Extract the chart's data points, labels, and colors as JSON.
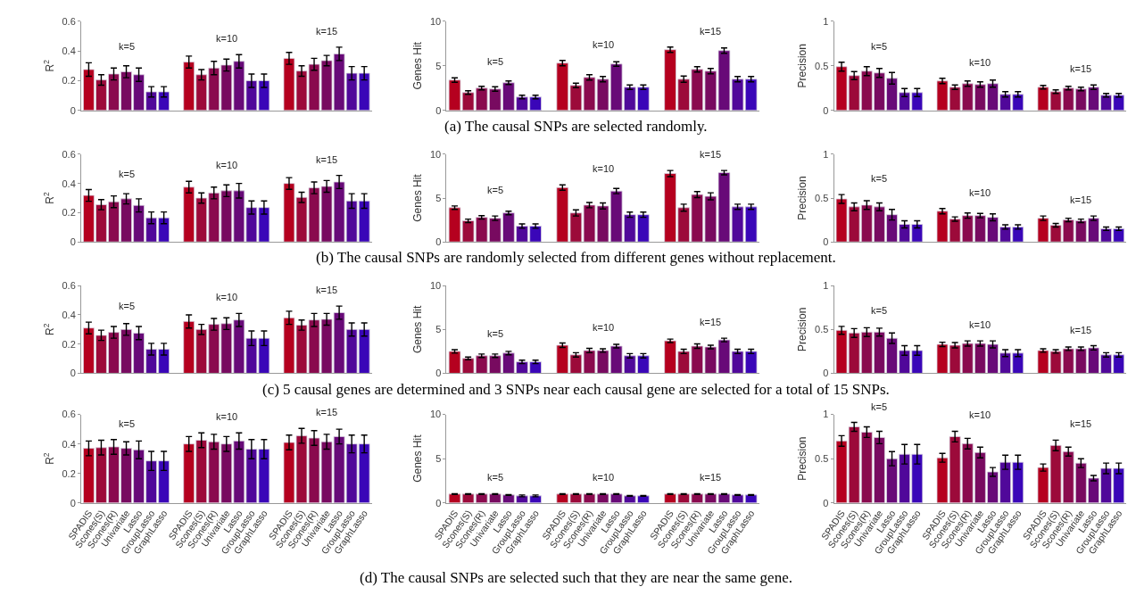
{
  "chart_data": [
    {
      "type": "bar",
      "ylabel": "R$^{2}$",
      "categories": [
        null,
        null,
        null,
        null,
        null,
        null,
        null,
        null,
        null,
        null,
        null,
        null,
        null,
        null,
        null,
        null,
        null,
        null,
        null,
        null,
        null,
        null,
        null
      ],
      "colors": [
        "#b5001f",
        "#9c0a3a",
        "#8a0a4e",
        "#780a60",
        "#680a78",
        "#50089a",
        "#3a06b8",
        null,
        "#b5001f",
        "#9c0a3a",
        "#8a0a4e",
        "#780a60",
        "#680a78",
        "#50089a",
        "#3a06b8",
        null,
        "#b5001f",
        "#9c0a3a",
        "#8a0a4e",
        "#780a60",
        "#680a78",
        "#50089a",
        "#3a06b8"
      ],
      "values": [
        0.275,
        0.205,
        0.245,
        0.26,
        0.24,
        0.125,
        0.125,
        null,
        0.325,
        0.24,
        0.285,
        0.305,
        0.33,
        0.2,
        0.2,
        null,
        0.35,
        0.265,
        0.31,
        0.335,
        0.38,
        0.25,
        0.25
      ],
      "errors": [
        0.045,
        0.035,
        0.04,
        0.04,
        0.045,
        0.035,
        0.035,
        null,
        0.04,
        0.035,
        0.045,
        0.04,
        0.045,
        0.045,
        0.045,
        null,
        0.04,
        0.035,
        0.04,
        0.035,
        0.045,
        0.045,
        0.045
      ],
      "ylim": [
        0,
        0.6
      ],
      "yticks": [
        0,
        0.2,
        0.4,
        0.6
      ],
      "annotations": [
        "k=5",
        "k=10",
        "k=15"
      ]
    },
    {
      "type": "bar",
      "ylabel": "Genes Hit",
      "categories": [
        null,
        null,
        null,
        null,
        null,
        null,
        null,
        null,
        null,
        null,
        null,
        null,
        null,
        null,
        null,
        null,
        null,
        null,
        null,
        null,
        null,
        null,
        null
      ],
      "colors": [
        "#b5001f",
        "#9c0a3a",
        "#8a0a4e",
        "#780a60",
        "#680a78",
        "#50089a",
        "#3a06b8",
        null,
        "#b5001f",
        "#9c0a3a",
        "#8a0a4e",
        "#780a60",
        "#680a78",
        "#50089a",
        "#3a06b8",
        null,
        "#b5001f",
        "#9c0a3a",
        "#8a0a4e",
        "#780a60",
        "#680a78",
        "#50089a",
        "#3a06b8"
      ],
      "values": [
        3.4,
        2.0,
        2.5,
        2.4,
        3.1,
        1.5,
        1.5,
        null,
        5.3,
        2.8,
        3.7,
        3.5,
        5.2,
        2.6,
        2.6,
        null,
        6.8,
        3.5,
        4.6,
        4.4,
        6.7,
        3.5,
        3.5
      ],
      "errors": [
        0.25,
        0.2,
        0.2,
        0.25,
        0.2,
        0.2,
        0.2,
        null,
        0.3,
        0.25,
        0.3,
        0.3,
        0.25,
        0.25,
        0.25,
        null,
        0.3,
        0.35,
        0.3,
        0.3,
        0.3,
        0.3,
        0.3
      ],
      "ylim": [
        0,
        10
      ],
      "yticks": [
        0,
        5,
        10
      ],
      "annotations": [
        "k=5",
        "k=10",
        "k=15",
        "(a) The causal SNPs are selected randomly."
      ]
    },
    {
      "type": "bar",
      "ylabel": "Precision",
      "categories": [
        null,
        null,
        null,
        null,
        null,
        null,
        null,
        null,
        null,
        null,
        null,
        null,
        null,
        null,
        null,
        null,
        null,
        null,
        null,
        null,
        null,
        null,
        null
      ],
      "colors": [
        "#b5001f",
        "#9c0a3a",
        "#8a0a4e",
        "#780a60",
        "#680a78",
        "#50089a",
        "#3a06b8",
        null,
        "#b5001f",
        "#9c0a3a",
        "#8a0a4e",
        "#780a60",
        "#680a78",
        "#50089a",
        "#3a06b8",
        null,
        "#b5001f",
        "#9c0a3a",
        "#8a0a4e",
        "#780a60",
        "#680a78",
        "#50089a",
        "#3a06b8"
      ],
      "values": [
        0.49,
        0.39,
        0.44,
        0.42,
        0.36,
        0.2,
        0.2,
        null,
        0.33,
        0.26,
        0.3,
        0.29,
        0.3,
        0.18,
        0.18,
        null,
        0.26,
        0.21,
        0.25,
        0.24,
        0.26,
        0.17,
        0.17
      ],
      "errors": [
        0.05,
        0.045,
        0.05,
        0.05,
        0.065,
        0.045,
        0.045,
        null,
        0.03,
        0.025,
        0.03,
        0.03,
        0.04,
        0.03,
        0.03,
        null,
        0.02,
        0.02,
        0.02,
        0.02,
        0.025,
        0.02,
        0.02
      ],
      "ylim": [
        0,
        1
      ],
      "yticks": [
        0,
        0.5,
        1
      ],
      "annotations": [
        "k=5",
        "k=10",
        "k=15"
      ]
    },
    {
      "type": "bar",
      "ylabel": "R$^{2}$",
      "categories": [
        null,
        null,
        null,
        null,
        null,
        null,
        null,
        null,
        null,
        null,
        null,
        null,
        null,
        null,
        null,
        null,
        null,
        null,
        null,
        null,
        null,
        null,
        null
      ],
      "colors": [
        "#b5001f",
        "#9c0a3a",
        "#8a0a4e",
        "#780a60",
        "#680a78",
        "#50089a",
        "#3a06b8",
        null,
        "#b5001f",
        "#9c0a3a",
        "#8a0a4e",
        "#780a60",
        "#680a78",
        "#50089a",
        "#3a06b8",
        null,
        "#b5001f",
        "#9c0a3a",
        "#8a0a4e",
        "#780a60",
        "#680a78",
        "#50089a",
        "#3a06b8"
      ],
      "values": [
        0.318,
        0.255,
        0.275,
        0.295,
        0.25,
        0.165,
        0.165,
        null,
        0.375,
        0.3,
        0.335,
        0.35,
        0.35,
        0.235,
        0.235,
        null,
        0.4,
        0.305,
        0.37,
        0.38,
        0.41,
        0.28,
        0.28
      ],
      "errors": [
        0.04,
        0.035,
        0.04,
        0.035,
        0.045,
        0.04,
        0.04,
        null,
        0.04,
        0.035,
        0.04,
        0.04,
        0.05,
        0.045,
        0.045,
        null,
        0.04,
        0.035,
        0.04,
        0.04,
        0.045,
        0.05,
        0.05
      ],
      "ylim": [
        0,
        0.6
      ],
      "yticks": [
        0,
        0.2,
        0.4,
        0.6
      ],
      "annotations": [
        "k=5",
        "k=10",
        "k=15"
      ]
    },
    {
      "type": "bar",
      "ylabel": "Genes Hit",
      "categories": [
        null,
        null,
        null,
        null,
        null,
        null,
        null,
        null,
        null,
        null,
        null,
        null,
        null,
        null,
        null,
        null,
        null,
        null,
        null,
        null,
        null,
        null,
        null
      ],
      "colors": [
        "#b5001f",
        "#9c0a3a",
        "#8a0a4e",
        "#780a60",
        "#680a78",
        "#50089a",
        "#3a06b8",
        null,
        "#b5001f",
        "#9c0a3a",
        "#8a0a4e",
        "#780a60",
        "#680a78",
        "#50089a",
        "#3a06b8",
        null,
        "#b5001f",
        "#9c0a3a",
        "#8a0a4e",
        "#780a60",
        "#680a78",
        "#50089a",
        "#3a06b8"
      ],
      "values": [
        3.9,
        2.4,
        2.8,
        2.7,
        3.3,
        1.8,
        1.8,
        null,
        6.2,
        3.3,
        4.2,
        4.1,
        5.8,
        3.1,
        3.1,
        null,
        7.8,
        3.9,
        5.4,
        5.2,
        7.9,
        4.0,
        4.0
      ],
      "errors": [
        0.2,
        0.2,
        0.2,
        0.25,
        0.2,
        0.25,
        0.25,
        null,
        0.3,
        0.35,
        0.3,
        0.35,
        0.3,
        0.3,
        0.3,
        null,
        0.35,
        0.4,
        0.35,
        0.4,
        0.25,
        0.3,
        0.3
      ],
      "ylim": [
        0,
        10
      ],
      "yticks": [
        0,
        5,
        10
      ],
      "annotations": [
        "k=5",
        "k=10",
        "k=15",
        "(b) The causal SNPs are randomly selected from different genes without replacement."
      ]
    },
    {
      "type": "bar",
      "ylabel": "Precision",
      "categories": [
        null,
        null,
        null,
        null,
        null,
        null,
        null,
        null,
        null,
        null,
        null,
        null,
        null,
        null,
        null,
        null,
        null,
        null,
        null,
        null,
        null,
        null,
        null
      ],
      "colors": [
        "#b5001f",
        "#9c0a3a",
        "#8a0a4e",
        "#780a60",
        "#680a78",
        "#50089a",
        "#3a06b8",
        null,
        "#b5001f",
        "#9c0a3a",
        "#8a0a4e",
        "#780a60",
        "#680a78",
        "#50089a",
        "#3a06b8",
        null,
        "#b5001f",
        "#9c0a3a",
        "#8a0a4e",
        "#780a60",
        "#680a78",
        "#50089a",
        "#3a06b8"
      ],
      "values": [
        0.49,
        0.4,
        0.42,
        0.4,
        0.31,
        0.2,
        0.2,
        null,
        0.35,
        0.26,
        0.3,
        0.3,
        0.28,
        0.17,
        0.17,
        null,
        0.27,
        0.19,
        0.25,
        0.24,
        0.27,
        0.15,
        0.15
      ],
      "errors": [
        0.05,
        0.045,
        0.05,
        0.045,
        0.06,
        0.04,
        0.04,
        null,
        0.03,
        0.025,
        0.03,
        0.025,
        0.04,
        0.025,
        0.025,
        null,
        0.025,
        0.02,
        0.02,
        0.02,
        0.025,
        0.02,
        0.02
      ],
      "ylim": [
        0,
        1
      ],
      "yticks": [
        0,
        0.5,
        1
      ],
      "annotations": [
        "k=5",
        "k=10",
        "k=15"
      ]
    },
    {
      "type": "bar",
      "ylabel": "R$^{2}$",
      "categories": [
        null,
        null,
        null,
        null,
        null,
        null,
        null,
        null,
        null,
        null,
        null,
        null,
        null,
        null,
        null,
        null,
        null,
        null,
        null,
        null,
        null,
        null,
        null
      ],
      "colors": [
        "#b5001f",
        "#9c0a3a",
        "#8a0a4e",
        "#780a60",
        "#680a78",
        "#50089a",
        "#3a06b8",
        null,
        "#b5001f",
        "#9c0a3a",
        "#8a0a4e",
        "#780a60",
        "#680a78",
        "#50089a",
        "#3a06b8",
        null,
        "#b5001f",
        "#9c0a3a",
        "#8a0a4e",
        "#780a60",
        "#680a78",
        "#50089a",
        "#3a06b8"
      ],
      "values": [
        0.31,
        0.26,
        0.28,
        0.3,
        0.275,
        0.165,
        0.165,
        null,
        0.355,
        0.3,
        0.335,
        0.34,
        0.365,
        0.24,
        0.24,
        null,
        0.38,
        0.33,
        0.365,
        0.37,
        0.415,
        0.3,
        0.3
      ],
      "errors": [
        0.04,
        0.035,
        0.04,
        0.04,
        0.045,
        0.04,
        0.04,
        null,
        0.045,
        0.035,
        0.04,
        0.04,
        0.045,
        0.05,
        0.05,
        null,
        0.045,
        0.035,
        0.045,
        0.04,
        0.045,
        0.045,
        0.045
      ],
      "ylim": [
        0,
        0.6
      ],
      "yticks": [
        0,
        0.2,
        0.4,
        0.6
      ],
      "annotations": [
        "k=5",
        "k=10",
        "k=15"
      ]
    },
    {
      "type": "bar",
      "ylabel": "Genes Hit",
      "categories": [
        null,
        null,
        null,
        null,
        null,
        null,
        null,
        null,
        null,
        null,
        null,
        null,
        null,
        null,
        null,
        null,
        null,
        null,
        null,
        null,
        null,
        null,
        null
      ],
      "colors": [
        "#b5001f",
        "#9c0a3a",
        "#8a0a4e",
        "#780a60",
        "#680a78",
        "#50089a",
        "#3a06b8",
        null,
        "#b5001f",
        "#9c0a3a",
        "#8a0a4e",
        "#780a60",
        "#680a78",
        "#50089a",
        "#3a06b8",
        null,
        "#b5001f",
        "#9c0a3a",
        "#8a0a4e",
        "#780a60",
        "#680a78",
        "#50089a",
        "#3a06b8"
      ],
      "values": [
        2.5,
        1.7,
        2.0,
        2.0,
        2.3,
        1.3,
        1.3,
        null,
        3.2,
        2.1,
        2.6,
        2.6,
        3.1,
        2.0,
        2.0,
        null,
        3.7,
        2.5,
        3.1,
        3.0,
        3.8,
        2.5,
        2.5
      ],
      "errors": [
        0.2,
        0.15,
        0.2,
        0.2,
        0.2,
        0.2,
        0.2,
        null,
        0.25,
        0.25,
        0.25,
        0.2,
        0.2,
        0.25,
        0.25,
        null,
        0.2,
        0.25,
        0.25,
        0.2,
        0.2,
        0.25,
        0.25
      ],
      "ylim": [
        0,
        10
      ],
      "yticks": [
        0,
        5,
        10
      ],
      "annotations": [
        "k=5",
        "k=10",
        "k=15",
        "(c) 5 causal genes are determined and 3 SNPs near each causal gene are selected for a total of 15 SNPs."
      ]
    },
    {
      "type": "bar",
      "ylabel": "Precision",
      "categories": [
        null,
        null,
        null,
        null,
        null,
        null,
        null,
        null,
        null,
        null,
        null,
        null,
        null,
        null,
        null,
        null,
        null,
        null,
        null,
        null,
        null,
        null,
        null
      ],
      "colors": [
        "#b5001f",
        "#9c0a3a",
        "#8a0a4e",
        "#780a60",
        "#680a78",
        "#50089a",
        "#3a06b8",
        null,
        "#b5001f",
        "#9c0a3a",
        "#8a0a4e",
        "#780a60",
        "#680a78",
        "#50089a",
        "#3a06b8",
        null,
        "#b5001f",
        "#9c0a3a",
        "#8a0a4e",
        "#780a60",
        "#680a78",
        "#50089a",
        "#3a06b8"
      ],
      "values": [
        0.49,
        0.46,
        0.47,
        0.47,
        0.4,
        0.26,
        0.26,
        null,
        0.33,
        0.32,
        0.34,
        0.34,
        0.33,
        0.23,
        0.23,
        null,
        0.26,
        0.25,
        0.28,
        0.28,
        0.29,
        0.21,
        0.21
      ],
      "errors": [
        0.045,
        0.05,
        0.05,
        0.045,
        0.06,
        0.055,
        0.055,
        null,
        0.025,
        0.03,
        0.03,
        0.03,
        0.04,
        0.04,
        0.04,
        null,
        0.02,
        0.02,
        0.02,
        0.02,
        0.025,
        0.025,
        0.025
      ],
      "ylim": [
        0,
        1
      ],
      "yticks": [
        0,
        0.5,
        1
      ],
      "annotations": [
        "k=5",
        "k=10",
        "k=15"
      ]
    },
    {
      "type": "bar",
      "ylabel": "R$^{2}$",
      "categories": [
        "SPADIS",
        "Scones(S)",
        "Scones(R)",
        "Univariate",
        "Lasso",
        "GroupLasso",
        "GraphLasso",
        null,
        "SPADIS",
        "Scones(S)",
        "Scones(R)",
        "Univariate",
        "Lasso",
        "GroupLasso",
        "GraphLasso",
        null,
        "SPADIS",
        "Scones(S)",
        "Scones(R)",
        "Univariate",
        "Lasso",
        "GroupLasso",
        "GraphLasso"
      ],
      "colors": [
        "#b5001f",
        "#9c0a3a",
        "#8a0a4e",
        "#780a60",
        "#680a78",
        "#50089a",
        "#3a06b8",
        null,
        "#b5001f",
        "#9c0a3a",
        "#8a0a4e",
        "#780a60",
        "#680a78",
        "#50089a",
        "#3a06b8",
        null,
        "#b5001f",
        "#9c0a3a",
        "#8a0a4e",
        "#780a60",
        "#680a78",
        "#50089a",
        "#3a06b8"
      ],
      "values": [
        0.37,
        0.375,
        0.38,
        0.37,
        0.36,
        0.285,
        0.285,
        null,
        0.4,
        0.425,
        0.415,
        0.4,
        0.42,
        0.365,
        0.365,
        null,
        0.41,
        0.455,
        0.44,
        0.415,
        0.45,
        0.4,
        0.4
      ],
      "errors": [
        0.05,
        0.05,
        0.05,
        0.045,
        0.06,
        0.065,
        0.065,
        null,
        0.05,
        0.05,
        0.05,
        0.05,
        0.055,
        0.065,
        0.065,
        null,
        0.05,
        0.05,
        0.05,
        0.05,
        0.05,
        0.06,
        0.06
      ],
      "ylim": [
        0,
        0.6
      ],
      "yticks": [
        0,
        0.2,
        0.4,
        0.6
      ],
      "annotations": [
        "k=5",
        "k=10",
        "k=15"
      ]
    },
    {
      "type": "bar",
      "ylabel": "Genes Hit",
      "categories": [
        "SPADIS",
        "Scones(S)",
        "Scones(R)",
        "Univariate",
        "Lasso",
        "GroupLasso",
        "GraphLasso",
        null,
        "SPADIS",
        "Scones(S)",
        "Scones(R)",
        "Univariate",
        "Lasso",
        "GroupLasso",
        "GraphLasso",
        null,
        "SPADIS",
        "Scones(S)",
        "Scones(R)",
        "Univariate",
        "Lasso",
        "GroupLasso",
        "GraphLasso"
      ],
      "colors": [
        "#b5001f",
        "#9c0a3a",
        "#8a0a4e",
        "#780a60",
        "#680a78",
        "#50089a",
        "#3a06b8",
        null,
        "#b5001f",
        "#9c0a3a",
        "#8a0a4e",
        "#780a60",
        "#680a78",
        "#50089a",
        "#3a06b8",
        null,
        "#b5001f",
        "#9c0a3a",
        "#8a0a4e",
        "#780a60",
        "#680a78",
        "#50089a",
        "#3a06b8"
      ],
      "values": [
        1.0,
        1.0,
        1.0,
        1.0,
        0.9,
        0.8,
        0.8,
        null,
        1.0,
        1.0,
        1.0,
        1.0,
        1.0,
        0.8,
        0.8,
        null,
        1.0,
        1.0,
        1.0,
        1.0,
        1.0,
        0.9,
        0.9
      ],
      "errors": [
        0.05,
        0.05,
        0.05,
        0.05,
        0.05,
        0.1,
        0.1,
        null,
        0.05,
        0.05,
        0.05,
        0.05,
        0.05,
        0.05,
        0.05,
        null,
        0.05,
        0.05,
        0.05,
        0.05,
        0.05,
        0.05,
        0.05
      ],
      "ylim": [
        0,
        10
      ],
      "yticks": [
        0,
        5,
        10
      ],
      "annotations": [
        "k=5",
        "k=10",
        "k=15",
        "(d) The causal SNPs are selected such that they are near the same gene."
      ]
    },
    {
      "type": "bar",
      "ylabel": "Precision",
      "categories": [
        "SPADIS",
        "Scones(S)",
        "Scones(R)",
        "Univariate",
        "Lasso",
        "GroupLasso",
        "GraphLasso",
        null,
        "SPADIS",
        "Scones(S)",
        "Scones(R)",
        "Univariate",
        "Lasso",
        "GroupLasso",
        "GraphLasso",
        null,
        "SPADIS",
        "Scones(S)",
        "Scones(R)",
        "Univariate",
        "Lasso",
        "GroupLasso",
        "GraphLasso"
      ],
      "colors": [
        "#b5001f",
        "#9c0a3a",
        "#8a0a4e",
        "#780a60",
        "#680a78",
        "#50089a",
        "#3a06b8",
        null,
        "#b5001f",
        "#9c0a3a",
        "#8a0a4e",
        "#780a60",
        "#680a78",
        "#50089a",
        "#3a06b8",
        null,
        "#b5001f",
        "#9c0a3a",
        "#8a0a4e",
        "#780a60",
        "#680a78",
        "#50089a",
        "#3a06b8"
      ],
      "values": [
        0.7,
        0.86,
        0.8,
        0.74,
        0.5,
        0.55,
        0.55,
        null,
        0.51,
        0.75,
        0.67,
        0.57,
        0.35,
        0.46,
        0.46,
        null,
        0.4,
        0.65,
        0.58,
        0.45,
        0.28,
        0.39,
        0.39
      ],
      "errors": [
        0.06,
        0.05,
        0.06,
        0.07,
        0.08,
        0.11,
        0.11,
        null,
        0.05,
        0.06,
        0.06,
        0.06,
        0.05,
        0.08,
        0.08,
        null,
        0.04,
        0.06,
        0.05,
        0.05,
        0.03,
        0.06,
        0.06
      ],
      "ylim": [
        0,
        1
      ],
      "yticks": [
        0,
        0.5,
        1
      ],
      "annotations": [
        "k=5",
        "k=10",
        "k=15"
      ]
    }
  ]
}
